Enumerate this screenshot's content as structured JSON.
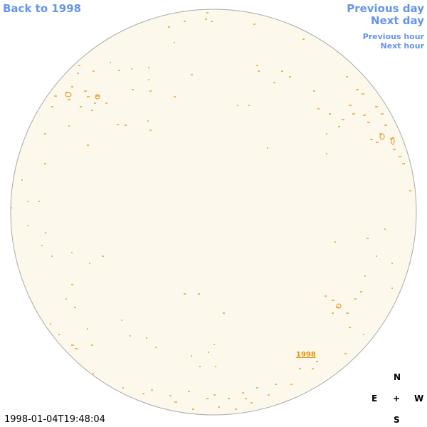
{
  "nav": {
    "back": "Back to 1998",
    "previous_day": "Previous day",
    "next_day": "Next day",
    "previous_hour": "Previous hour",
    "next_hour": "Next hour"
  },
  "disk_label": "1998",
  "compass": {
    "north": "N",
    "east": "E",
    "center": "+",
    "west": "W",
    "south": "S"
  },
  "timestamp": "1998-01-04T19:48:04"
}
